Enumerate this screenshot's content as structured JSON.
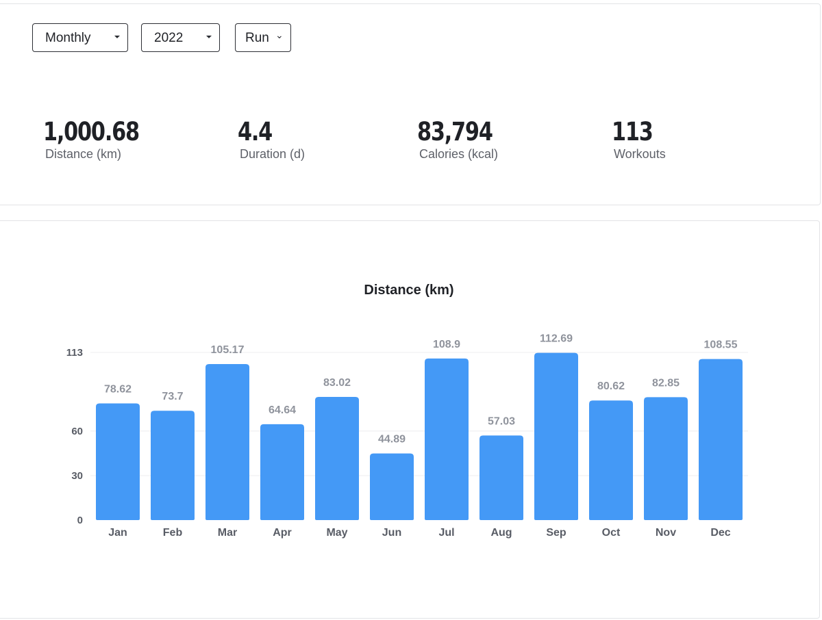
{
  "filters": {
    "period": "Monthly",
    "year": "2022",
    "activity": "Run"
  },
  "stats": [
    {
      "value": "1,000.68",
      "label": "Distance (km)"
    },
    {
      "value": "4.4",
      "label": "Duration (d)"
    },
    {
      "value": "83,794",
      "label": "Calories (kcal)"
    },
    {
      "value": "113",
      "label": "Workouts"
    }
  ],
  "colors": {
    "bar": "#4499f6",
    "value_label": "#8f939c",
    "axis_label": "#585c65",
    "grid": "#ececef"
  },
  "chart_data": {
    "type": "bar",
    "title": "Distance (km)",
    "xlabel": "",
    "ylabel": "",
    "categories": [
      "Jan",
      "Feb",
      "Mar",
      "Apr",
      "May",
      "Jun",
      "Jul",
      "Aug",
      "Sep",
      "Oct",
      "Nov",
      "Dec"
    ],
    "values": [
      78.62,
      73.7,
      105.17,
      64.64,
      83.02,
      44.89,
      108.9,
      57.03,
      112.69,
      80.62,
      82.85,
      108.55
    ],
    "value_labels": [
      "78.62",
      "73.7",
      "105.17",
      "64.64",
      "83.02",
      "44.89",
      "108.9",
      "57.03",
      "112.69",
      "80.62",
      "82.85",
      "108.55"
    ],
    "yticks": [
      0,
      30,
      60,
      113
    ],
    "ytick_labels": [
      "0",
      "30",
      "60",
      "113"
    ],
    "ylim": [
      0,
      113
    ],
    "grid": true,
    "legend": "none"
  }
}
